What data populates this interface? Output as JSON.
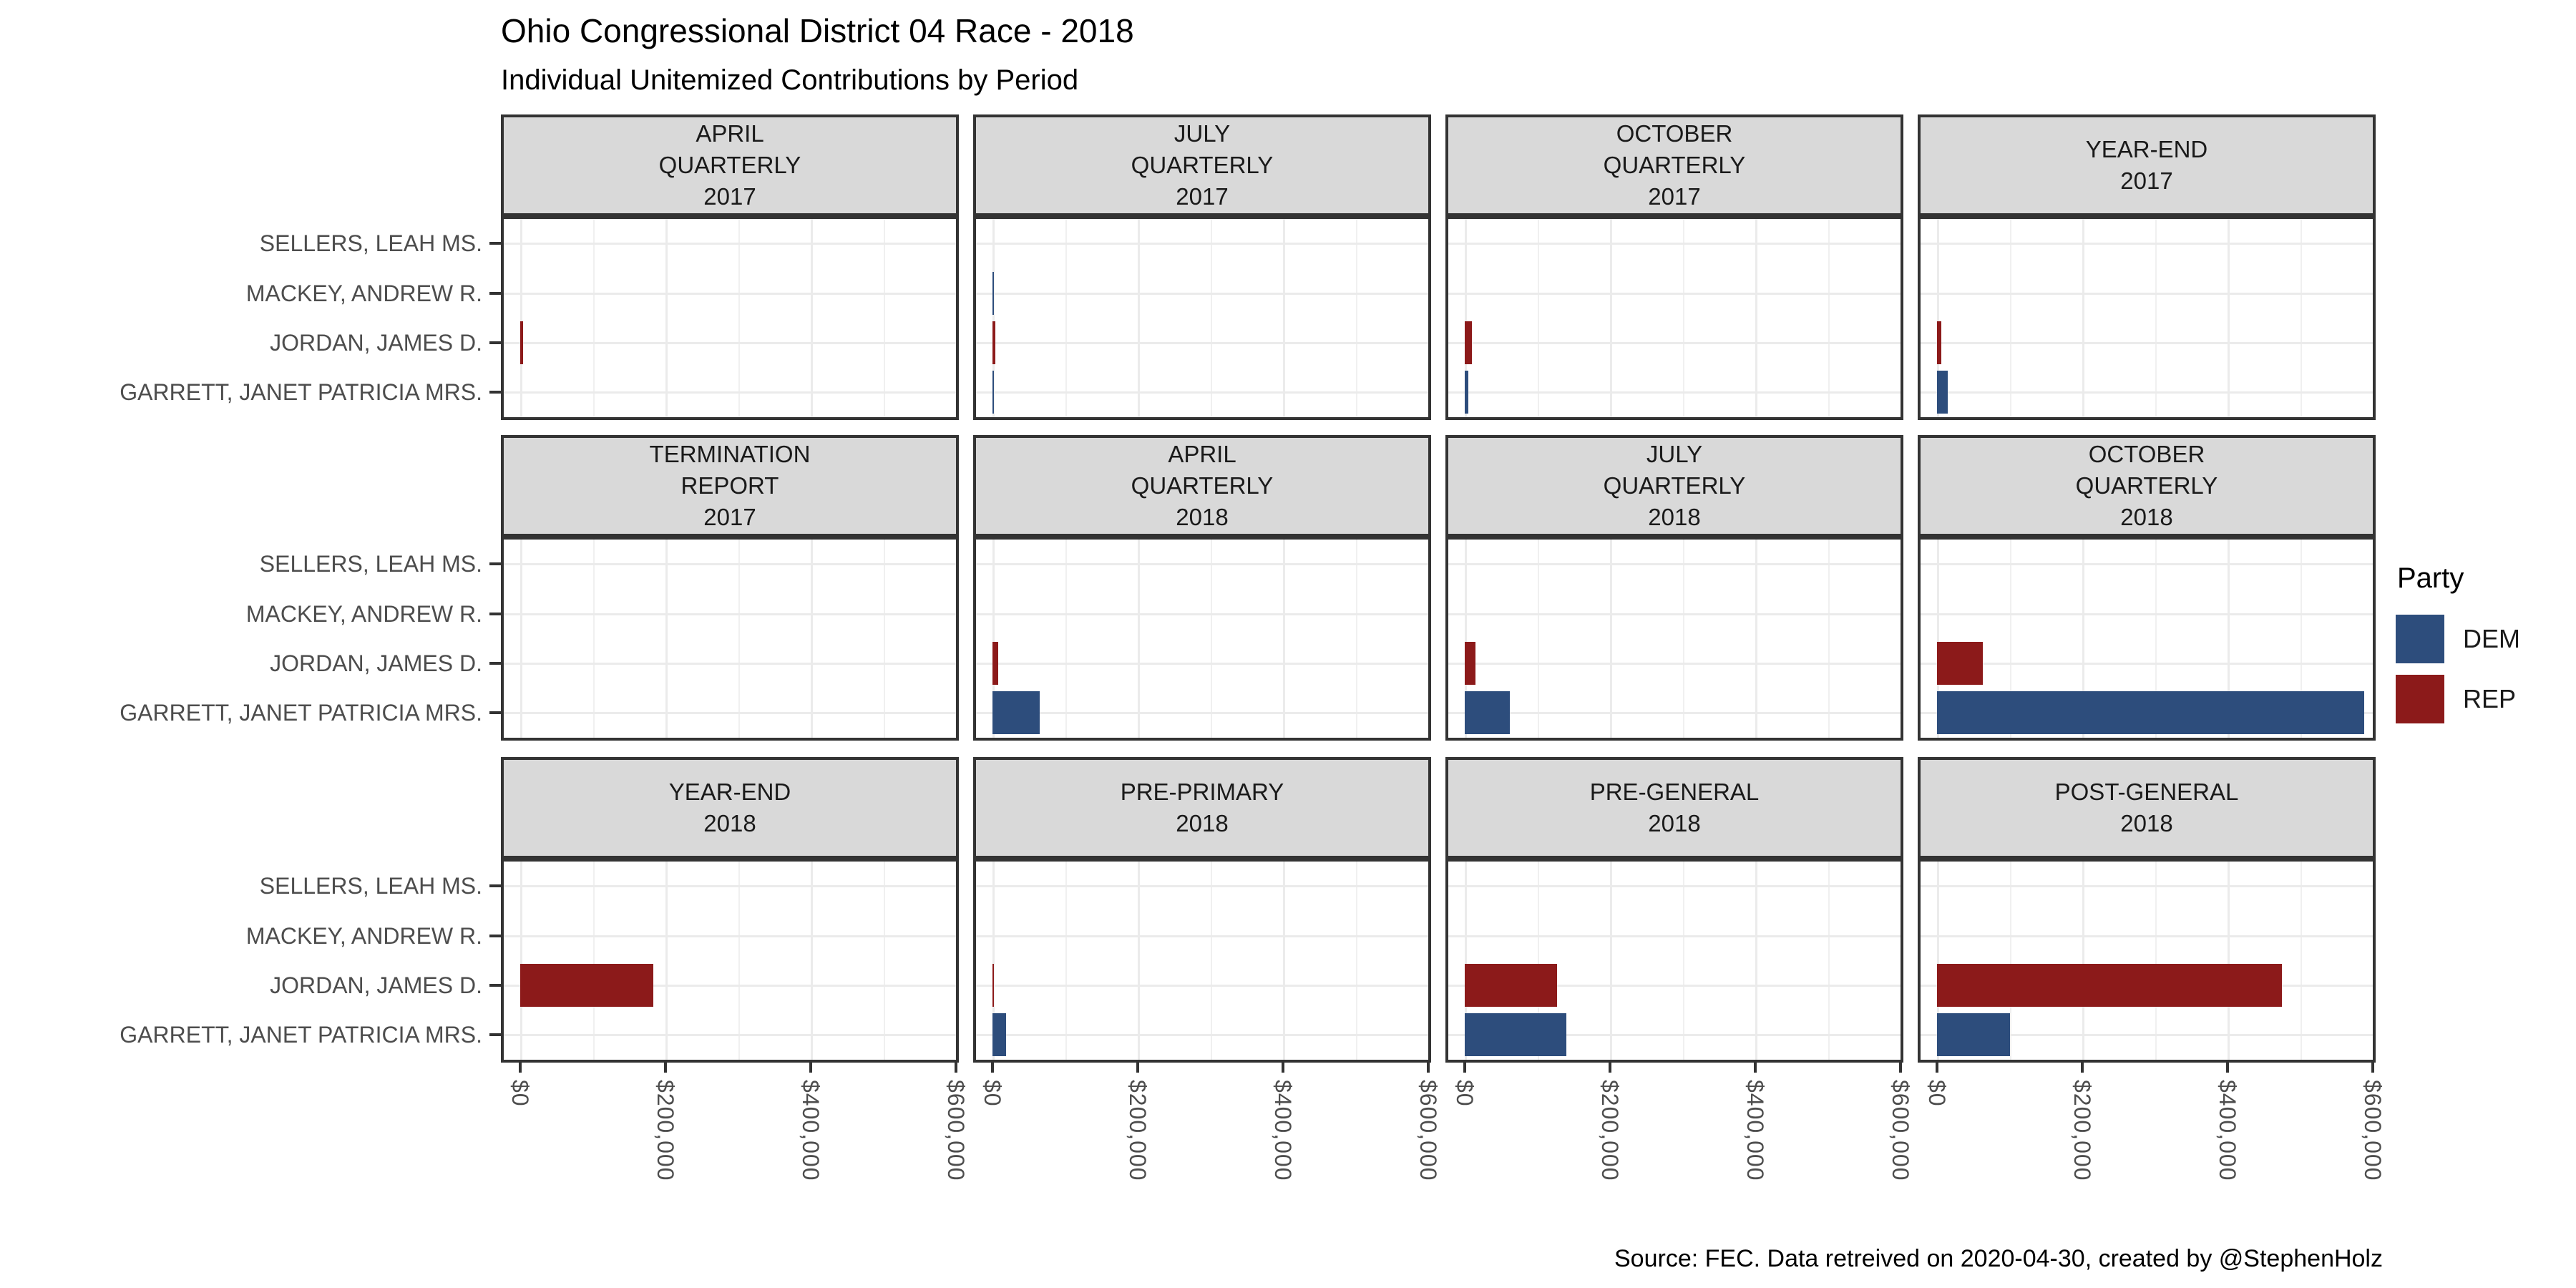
{
  "title": "Ohio Congressional District 04 Race - 2018",
  "subtitle": "Individual Unitemized Contributions by Period",
  "caption": "Source: FEC. Data retreived on 2020-04-30, created by @StephenHolz",
  "legend": {
    "title": "Party",
    "items": [
      {
        "label": "DEM",
        "color": "#2d4d7c"
      },
      {
        "label": "REP",
        "color": "#8c1a1a"
      }
    ]
  },
  "chart_data": {
    "type": "bar",
    "orientation": "horizontal",
    "xlabel": "",
    "ylabel": "",
    "xlim": [
      0,
      600000
    ],
    "grid": true,
    "legend_position": "right",
    "candidates": [
      "SELLERS, LEAH MS.",
      "MACKEY, ANDREW R.",
      "JORDAN, JAMES D.",
      "GARRETT, JANET PATRICIA MRS."
    ],
    "x_ticks": [
      "$0",
      "$200,000",
      "$400,000",
      "$600,000"
    ],
    "x_tick_values": [
      0,
      200000,
      400000,
      600000
    ],
    "facets": [
      {
        "label_lines": [
          "APRIL",
          "QUARTERLY",
          "2017"
        ],
        "bars": [
          {
            "candidate": "JORDAN, JAMES D.",
            "party": "REP",
            "value": 4000
          }
        ]
      },
      {
        "label_lines": [
          "JULY",
          "QUARTERLY",
          "2017"
        ],
        "bars": [
          {
            "candidate": "MACKEY, ANDREW R.",
            "party": "DEM",
            "value": 1000
          },
          {
            "candidate": "JORDAN, JAMES D.",
            "party": "REP",
            "value": 4000
          },
          {
            "candidate": "GARRETT, JANET PATRICIA MRS.",
            "party": "DEM",
            "value": 1000
          }
        ]
      },
      {
        "label_lines": [
          "OCTOBER",
          "QUARTERLY",
          "2017"
        ],
        "bars": [
          {
            "candidate": "JORDAN, JAMES D.",
            "party": "REP",
            "value": 10000
          },
          {
            "candidate": "GARRETT, JANET PATRICIA MRS.",
            "party": "DEM",
            "value": 5000
          }
        ]
      },
      {
        "label_lines": [
          "YEAR-END",
          "2017"
        ],
        "bars": [
          {
            "candidate": "JORDAN, JAMES D.",
            "party": "REP",
            "value": 6000
          },
          {
            "candidate": "GARRETT, JANET PATRICIA MRS.",
            "party": "DEM",
            "value": 15000
          }
        ]
      },
      {
        "label_lines": [
          "TERMINATION",
          "REPORT",
          "2017"
        ],
        "bars": []
      },
      {
        "label_lines": [
          "APRIL",
          "QUARTERLY",
          "2018"
        ],
        "bars": [
          {
            "candidate": "JORDAN, JAMES D.",
            "party": "REP",
            "value": 8000
          },
          {
            "candidate": "GARRETT, JANET PATRICIA MRS.",
            "party": "DEM",
            "value": 65000
          }
        ]
      },
      {
        "label_lines": [
          "JULY",
          "QUARTERLY",
          "2018"
        ],
        "bars": [
          {
            "candidate": "JORDAN, JAMES D.",
            "party": "REP",
            "value": 15000
          },
          {
            "candidate": "GARRETT, JANET PATRICIA MRS.",
            "party": "DEM",
            "value": 62000
          }
        ]
      },
      {
        "label_lines": [
          "OCTOBER",
          "QUARTERLY",
          "2018"
        ],
        "bars": [
          {
            "candidate": "JORDAN, JAMES D.",
            "party": "REP",
            "value": 63000
          },
          {
            "candidate": "GARRETT, JANET PATRICIA MRS.",
            "party": "DEM",
            "value": 588000
          }
        ]
      },
      {
        "label_lines": [
          "YEAR-END",
          "2018"
        ],
        "bars": [
          {
            "candidate": "JORDAN, JAMES D.",
            "party": "REP",
            "value": 183000
          }
        ]
      },
      {
        "label_lines": [
          "PRE-PRIMARY",
          "2018"
        ],
        "bars": [
          {
            "candidate": "JORDAN, JAMES D.",
            "party": "REP",
            "value": 1000
          },
          {
            "candidate": "GARRETT, JANET PATRICIA MRS.",
            "party": "DEM",
            "value": 19000
          }
        ]
      },
      {
        "label_lines": [
          "PRE-GENERAL",
          "2018"
        ],
        "bars": [
          {
            "candidate": "JORDAN, JAMES D.",
            "party": "REP",
            "value": 127000
          },
          {
            "candidate": "GARRETT, JANET PATRICIA MRS.",
            "party": "DEM",
            "value": 140000
          }
        ]
      },
      {
        "label_lines": [
          "POST-GENERAL",
          "2018"
        ],
        "bars": [
          {
            "candidate": "JORDAN, JAMES D.",
            "party": "REP",
            "value": 475000
          },
          {
            "candidate": "GARRETT, JANET PATRICIA MRS.",
            "party": "DEM",
            "value": 100000
          }
        ]
      }
    ]
  }
}
